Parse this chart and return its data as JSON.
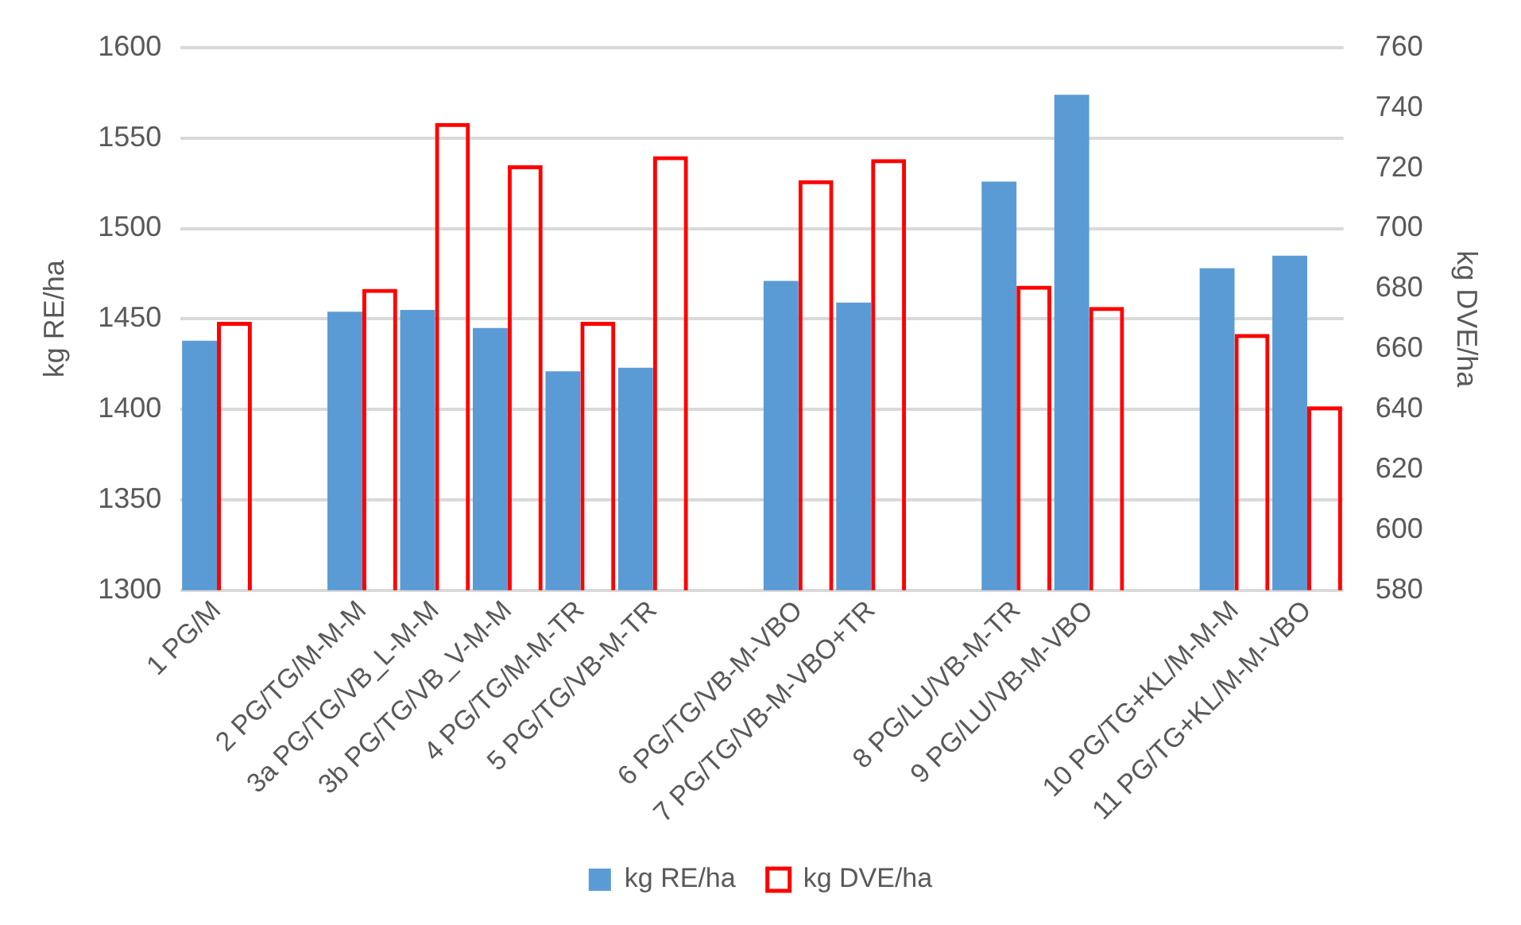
{
  "chart_data": {
    "type": "bar",
    "categories": [
      "1 PG/M",
      null,
      "2 PG/TG/M-M-M",
      "3a PG/TG/VB_L-M-M",
      "3b PG/TG/VB_V-M-M",
      "4 PG/TG/M-M-TR",
      "5 PG/TG/VB-M-TR",
      null,
      "6 PG/TG/VB-M-VBO",
      "7 PG/TG/VB-M-VBO+TR",
      null,
      "8 PG/LU/VB-M-TR",
      "9 PG/LU/VB-M-VBO",
      null,
      "10 PG/TG+KL/M-M-M",
      "11 PG/TG+KL/M-M-VBO"
    ],
    "series": [
      {
        "name": "kg RE/ha",
        "color": "#5b9bd5",
        "values": [
          1438,
          null,
          1454,
          1455,
          1445,
          1421,
          1423,
          null,
          1471,
          1459,
          null,
          1526,
          1574,
          null,
          1478,
          1485
        ]
      },
      {
        "name": "kg DVE/ha",
        "color": "#ff0000",
        "axis": "y2",
        "values": [
          669,
          null,
          680,
          735,
          721,
          669,
          724,
          null,
          716,
          723,
          null,
          681,
          674,
          null,
          665,
          641
        ]
      }
    ],
    "ylabel": "kg RE/ha",
    "y2label": "kg DVE/ha",
    "ylim": [
      1300,
      1600
    ],
    "yticks": [
      1300,
      1350,
      1400,
      1450,
      1500,
      1550,
      1600
    ],
    "y2lim": [
      580,
      760
    ],
    "y2ticks": [
      580,
      600,
      620,
      640,
      660,
      680,
      700,
      720,
      740,
      760
    ],
    "grid": "y",
    "legend": "bottom"
  }
}
